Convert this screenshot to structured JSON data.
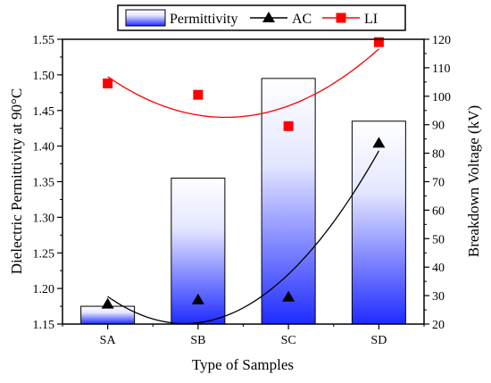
{
  "chart_data": {
    "type": "bar",
    "categories": [
      "SA",
      "SB",
      "SC",
      "SD"
    ],
    "xlabel": "Type of Samples",
    "ylabel": "Dielectric Permittivity at 90°C",
    "y2label": "Breakdown Voltage (kV)",
    "ylim": [
      1.15,
      1.55
    ],
    "y2lim": [
      20,
      120
    ],
    "yticks": [
      "1.15",
      "1.20",
      "1.25",
      "1.30",
      "1.35",
      "1.40",
      "1.45",
      "1.50",
      "1.55"
    ],
    "y2ticks": [
      "20",
      "30",
      "40",
      "50",
      "60",
      "70",
      "80",
      "90",
      "100",
      "110",
      "120"
    ],
    "legend_position": "top",
    "grid": false,
    "series": [
      {
        "name": "Permittivity",
        "type": "bar",
        "axis": "left",
        "color": "#1f2bff",
        "values": [
          1.175,
          1.355,
          1.495,
          1.435
        ]
      },
      {
        "name": "AC",
        "type": "scatter-with-trendline",
        "axis": "right",
        "marker": "triangle",
        "color": "#000000",
        "values": [
          27,
          28.5,
          29.5,
          83.5
        ]
      },
      {
        "name": "LI",
        "type": "scatter-with-trendline",
        "axis": "right",
        "marker": "square",
        "color": "#ff0000",
        "values": [
          104.5,
          100.5,
          89.5,
          119
        ]
      }
    ]
  }
}
